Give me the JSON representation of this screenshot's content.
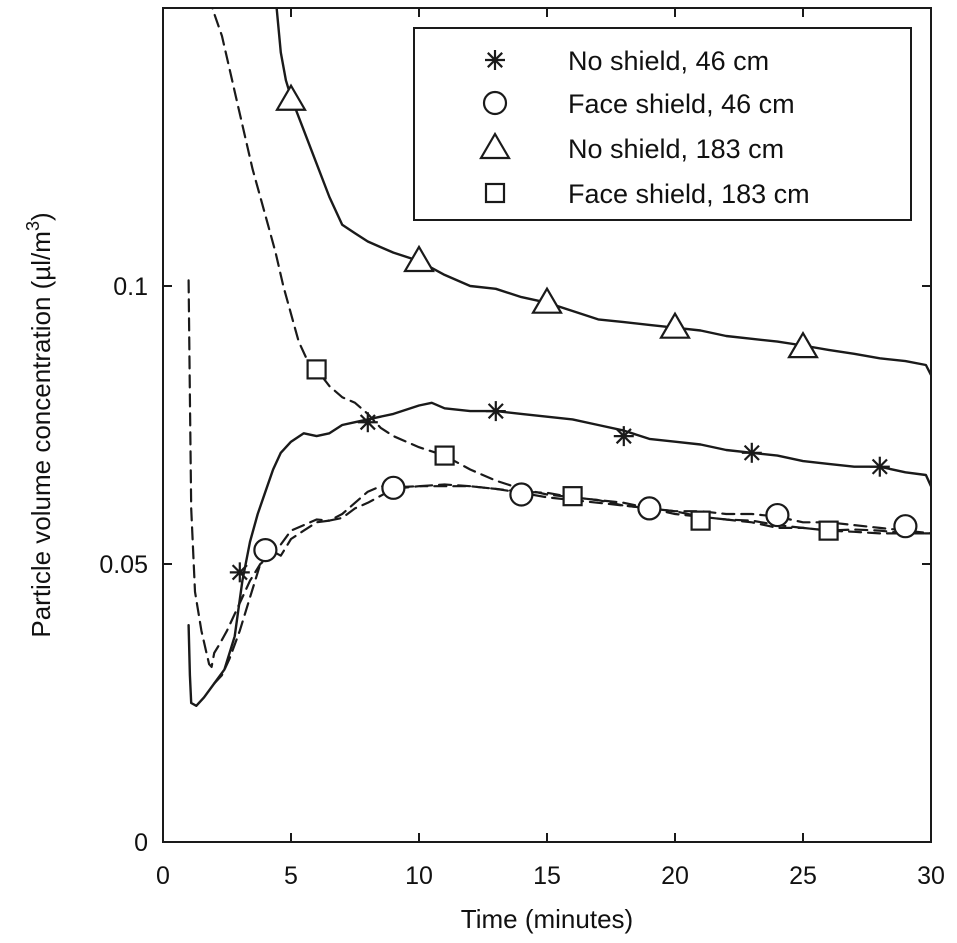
{
  "chart_data": {
    "type": "line",
    "xlabel": "Time (minutes)",
    "ylabel_main": "Particle volume concentration (µl/m",
    "ylabel_sup": "3",
    "ylabel_tail": ")",
    "xlim": [
      0,
      30
    ],
    "ylim": [
      0,
      0.15
    ],
    "xticks": [
      0,
      5,
      10,
      15,
      20,
      25,
      30
    ],
    "xtick_labels": [
      "0",
      "5",
      "10",
      "15",
      "20",
      "25",
      "30"
    ],
    "yticks": [
      0,
      0.05,
      0.1
    ],
    "ytick_labels": [
      "0",
      "0.05",
      "0.1"
    ],
    "grid": false,
    "legend_position": "top-right",
    "series": [
      {
        "name": "No shield, 46 cm",
        "marker": "asterisk",
        "line_style": "solid",
        "x": [
          1.0,
          1.05,
          1.1,
          1.3,
          1.6,
          2.0,
          2.4,
          2.8,
          3.1,
          3.4,
          3.7,
          4.0,
          4.3,
          4.6,
          5.0,
          5.5,
          6.0,
          6.5,
          7.0,
          7.5,
          8.0,
          9.0,
          10.0,
          10.5,
          11.0,
          12.0,
          13.0,
          14.0,
          15.0,
          16.0,
          17.0,
          18.0,
          19.0,
          20.0,
          21.0,
          22.0,
          23.0,
          24.0,
          25.0,
          26.0,
          27.0,
          28.0,
          29.0,
          29.8,
          30.0
        ],
        "y": [
          0.039,
          0.03,
          0.025,
          0.0245,
          0.026,
          0.0285,
          0.031,
          0.037,
          0.047,
          0.054,
          0.059,
          0.063,
          0.067,
          0.07,
          0.072,
          0.0735,
          0.073,
          0.0735,
          0.075,
          0.0755,
          0.076,
          0.077,
          0.0785,
          0.079,
          0.078,
          0.0775,
          0.0775,
          0.077,
          0.0765,
          0.076,
          0.075,
          0.074,
          0.0725,
          0.072,
          0.0715,
          0.0705,
          0.07,
          0.0695,
          0.0685,
          0.068,
          0.0675,
          0.0675,
          0.0665,
          0.066,
          0.064
        ],
        "markers_x": [
          3,
          8,
          13,
          18,
          23,
          28
        ],
        "markers_y": [
          0.0485,
          0.0755,
          0.0775,
          0.073,
          0.07,
          0.0675
        ]
      },
      {
        "name": "Face shield, 46 cm",
        "marker": "circle",
        "line_style": "dashed",
        "x": [
          2.0,
          2.3,
          2.6,
          3.0,
          3.4,
          3.8,
          4.2,
          4.6,
          5.0,
          5.5,
          6.0,
          6.5,
          7.0,
          7.5,
          8.0,
          8.5,
          9.0,
          10.0,
          11.0,
          12.0,
          13.0,
          14.0,
          15.0,
          16.0,
          17.0,
          18.0,
          19.0,
          20.0,
          21.0,
          22.0,
          23.0,
          24.0,
          25.0,
          26.0,
          27.0,
          28.0,
          29.0,
          30.0
        ],
        "y": [
          0.0285,
          0.03,
          0.033,
          0.038,
          0.044,
          0.05,
          0.0525,
          0.0515,
          0.0545,
          0.056,
          0.0575,
          0.0578,
          0.059,
          0.061,
          0.063,
          0.064,
          0.0638,
          0.064,
          0.0643,
          0.064,
          0.0635,
          0.0628,
          0.062,
          0.0615,
          0.061,
          0.0605,
          0.06,
          0.0595,
          0.0595,
          0.059,
          0.059,
          0.0585,
          0.0575,
          0.0575,
          0.057,
          0.0565,
          0.056,
          0.0555
        ],
        "markers_x": [
          4,
          9,
          14,
          19,
          24,
          29
        ],
        "markers_y": [
          0.0525,
          0.0637,
          0.0625,
          0.06,
          0.0588,
          0.0568
        ]
      },
      {
        "name": "No shield, 183 cm",
        "marker": "triangle",
        "line_style": "solid",
        "x": [
          4.4,
          4.6,
          4.8,
          5.0,
          5.5,
          6.0,
          6.5,
          7.0,
          7.5,
          8.0,
          8.5,
          9.0,
          10.0,
          11.0,
          12.0,
          13.0,
          14.0,
          15.0,
          16.0,
          17.0,
          18.0,
          19.0,
          20.0,
          21.0,
          22.0,
          23.0,
          24.0,
          25.0,
          26.0,
          27.0,
          28.0,
          29.0,
          29.8,
          30.0
        ],
        "y": [
          0.152,
          0.142,
          0.137,
          0.134,
          0.128,
          0.122,
          0.116,
          0.111,
          0.1095,
          0.108,
          0.107,
          0.106,
          0.1045,
          0.102,
          0.1,
          0.0995,
          0.098,
          0.097,
          0.0955,
          0.094,
          0.0935,
          0.093,
          0.0925,
          0.092,
          0.091,
          0.0905,
          0.09,
          0.0893,
          0.0885,
          0.0878,
          0.087,
          0.0865,
          0.0858,
          0.084
        ],
        "markers_x": [
          5,
          10,
          15,
          20,
          25
        ],
        "markers_y": [
          0.1335,
          0.1045,
          0.097,
          0.0925,
          0.089
        ]
      },
      {
        "name": "Face shield, 183 cm",
        "marker": "square",
        "line_style": "dashed",
        "x": [
          1.0,
          1.05,
          1.1,
          1.25,
          1.5,
          1.7,
          1.8,
          1.9,
          2.0,
          2.2,
          2.5,
          2.8,
          3.1,
          3.4,
          3.8,
          4.2,
          4.6,
          5.0,
          5.5,
          6.0,
          6.5,
          7.0,
          7.5,
          8.0,
          9.0,
          10.0,
          11.0,
          12.0,
          13.0,
          14.0,
          15.0,
          16.0,
          17.0,
          18.0,
          19.0,
          20.0,
          21.0,
          22.0,
          23.0,
          24.0,
          25.0,
          26.0,
          27.0,
          28.0,
          29.0,
          30.0
        ],
        "y": [
          0.101,
          0.08,
          0.06,
          0.045,
          0.038,
          0.034,
          0.032,
          0.0315,
          0.034,
          0.0355,
          0.038,
          0.041,
          0.044,
          0.047,
          0.05,
          0.0515,
          0.0535,
          0.056,
          0.057,
          0.058,
          0.0578,
          0.0583,
          0.06,
          0.061,
          0.0635,
          0.064,
          0.064,
          0.064,
          0.0635,
          0.063,
          0.0628,
          0.062,
          0.0615,
          0.061,
          0.06,
          0.0595,
          0.0585,
          0.058,
          0.0578,
          0.057,
          0.0565,
          0.056,
          0.0558,
          0.0555,
          0.0555,
          0.0555
        ],
        "extra_x": [
          1.8,
          2.0,
          2.3,
          2.6,
          2.9,
          3.2,
          3.5,
          3.8,
          4.1,
          4.4,
          4.7,
          5.0,
          5.3,
          5.6,
          6.0,
          6.5,
          7.0,
          7.5,
          8.0,
          8.5,
          9.0,
          10.0,
          11.0,
          12.0,
          13.0,
          14.0,
          15.0,
          16.0,
          17.0,
          18.0,
          19.0,
          20.0,
          21.0,
          22.0,
          23.0,
          24.0,
          25.0,
          26.0,
          27.0,
          28.0,
          29.0,
          30.0
        ],
        "extra_y": [
          0.152,
          0.149,
          0.145,
          0.139,
          0.133,
          0.127,
          0.121,
          0.116,
          0.111,
          0.106,
          0.1,
          0.095,
          0.09,
          0.087,
          0.085,
          0.082,
          0.08,
          0.079,
          0.077,
          0.0745,
          0.073,
          0.071,
          0.0695,
          0.067,
          0.065,
          0.0635,
          0.0625,
          0.062,
          0.0615,
          0.0605,
          0.06,
          0.059,
          0.0585,
          0.058,
          0.0575,
          0.0565,
          0.0565,
          0.056,
          0.0562,
          0.056,
          0.0555,
          0.0555
        ],
        "markers_x": [
          6,
          11,
          16,
          21,
          26
        ],
        "markers_y": [
          0.085,
          0.0695,
          0.0622,
          0.0578,
          0.056
        ]
      }
    ]
  }
}
